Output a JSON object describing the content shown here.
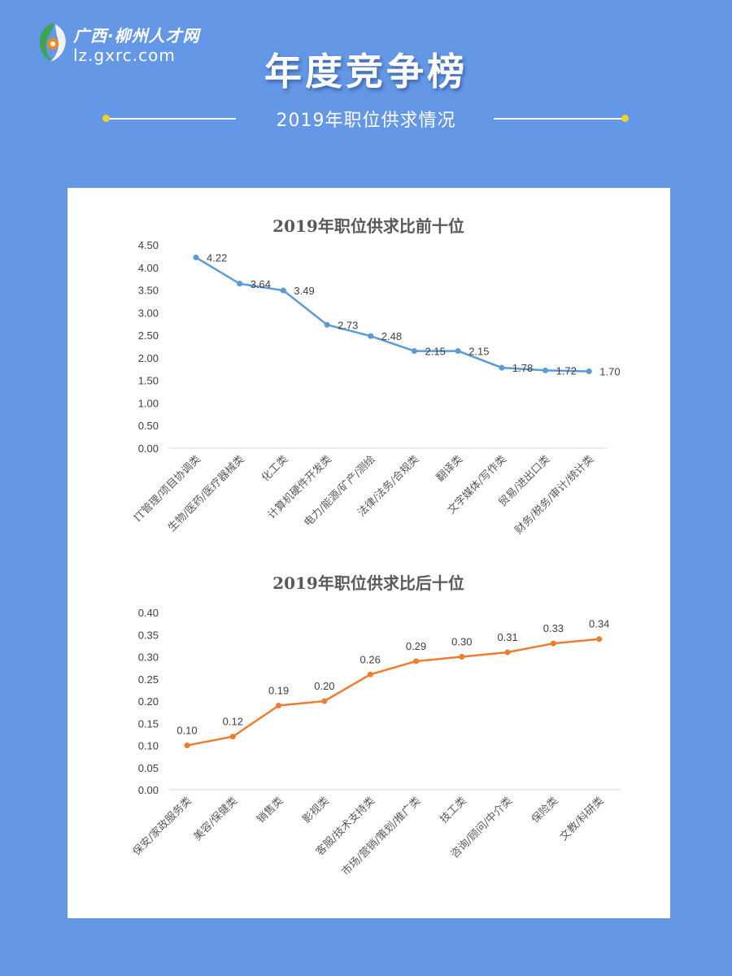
{
  "header": {
    "logo_cn": "广西·柳州人才网",
    "logo_url": "lz.gxrc.com",
    "title": "年度竞争榜",
    "subtitle": "2019年职位供求情况"
  },
  "colors": {
    "background": "#6497e6",
    "accent_dot": "#f4d02a",
    "top_series": "#5b9bd5",
    "bottom_series": "#ed7d31"
  },
  "chart_data": [
    {
      "type": "line",
      "title": "2019年职位供求比前十位",
      "categories": [
        "IT管理/项目协调类",
        "生物/医药/医疗器械类",
        "化工类",
        "计算机硬件开发类",
        "电力/能源/矿产/测绘",
        "法律/法务/合规类",
        "翻译类",
        "文字媒体/写作类",
        "贸易/进出口类",
        "财务/税务/审计/统计类"
      ],
      "values": [
        4.22,
        3.64,
        3.49,
        2.73,
        2.48,
        2.15,
        2.15,
        1.78,
        1.72,
        1.7
      ],
      "value_labels": [
        "4.22",
        "3.64",
        "3.49",
        "2.73",
        "2.48",
        "2.15",
        "2.15",
        "1.78",
        "1.72",
        "1.70"
      ],
      "y_ticks": [
        "0.00",
        "0.50",
        "1.00",
        "1.50",
        "2.00",
        "2.50",
        "3.00",
        "3.50",
        "4.00",
        "4.50"
      ],
      "ylim": [
        0,
        4.5
      ],
      "grid": false,
      "color": "#5b9bd5"
    },
    {
      "type": "line",
      "title": "2019年职位供求比后十位",
      "categories": [
        "保安/家政服务类",
        "美容/保健类",
        "销售类",
        "影视类",
        "客服/技术支持类",
        "市场/营销/策划/推广类",
        "技工类",
        "咨询/顾问/中介类",
        "保险类",
        "文教/科研类"
      ],
      "values": [
        0.1,
        0.12,
        0.19,
        0.2,
        0.26,
        0.29,
        0.3,
        0.31,
        0.33,
        0.34
      ],
      "value_labels": [
        "0.10",
        "0.12",
        "0.19",
        "0.20",
        "0.26",
        "0.29",
        "0.30",
        "0.31",
        "0.33",
        "0.34"
      ],
      "y_ticks": [
        "0.00",
        "0.05",
        "0.10",
        "0.15",
        "0.20",
        "0.25",
        "0.30",
        "0.35",
        "0.40"
      ],
      "ylim": [
        0,
        0.4
      ],
      "grid": false,
      "color": "#ed7d31"
    }
  ]
}
